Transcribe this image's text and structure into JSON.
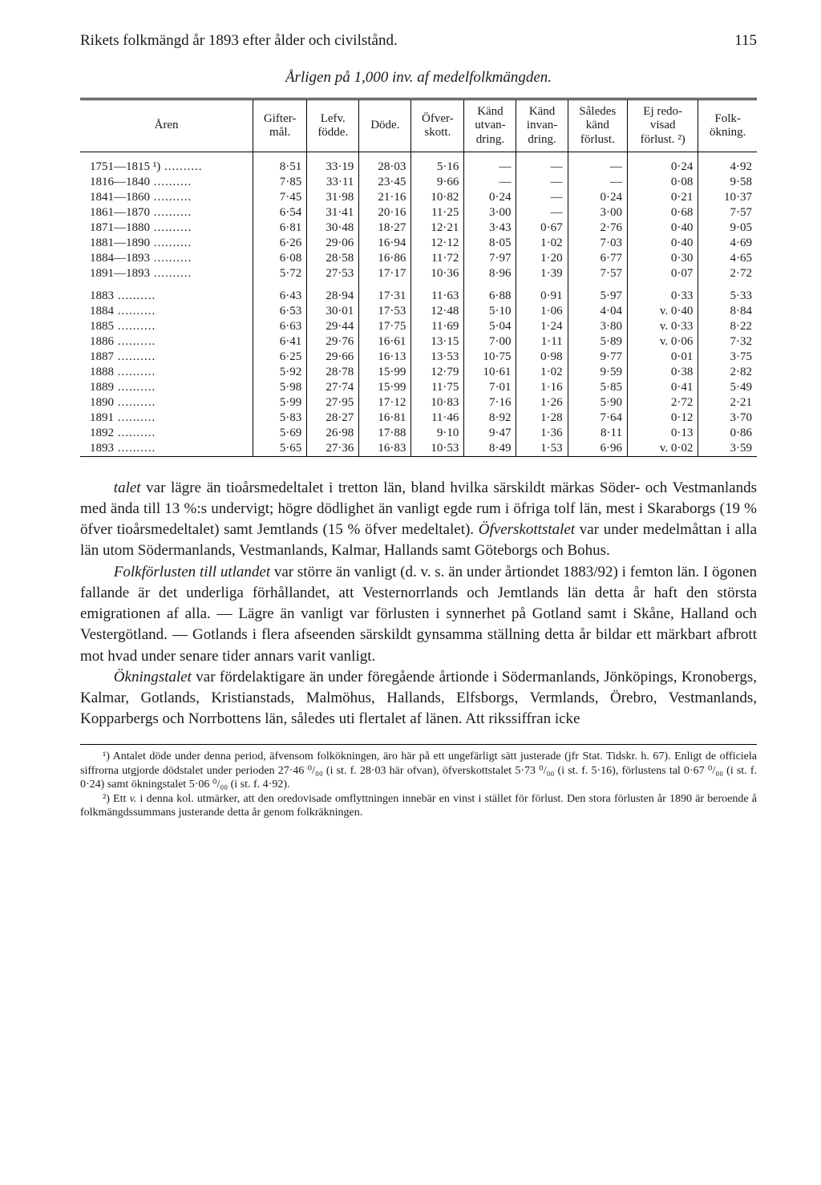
{
  "header": {
    "title": "Rikets folkmängd år 1893 efter ålder och civilstånd.",
    "pageno": "115"
  },
  "subtitle": "Årligen på 1,000 inv. af medelfolkmängden.",
  "table": {
    "columns": [
      "Åren",
      "Gifter-\nmål.",
      "Lefv.\nfödde.",
      "Döde.",
      "Öfver-\nskott.",
      "Känd\nutvan-\ndring.",
      "Känd\ninvan-\ndring.",
      "Således\nkänd\nförlust.",
      "Ej redo-\nvisad\nförlust. ²)",
      "Folk-\nökning."
    ],
    "rows_group1": [
      [
        "1751—1815 ¹)",
        "8·51",
        "33·19",
        "28·03",
        "5·16",
        "—",
        "—",
        "—",
        "0·24",
        "4·92"
      ],
      [
        "1816—1840",
        "7·85",
        "33·11",
        "23·45",
        "9·66",
        "—",
        "—",
        "—",
        "0·08",
        "9·58"
      ],
      [
        "1841—1860",
        "7·45",
        "31·98",
        "21·16",
        "10·82",
        "0·24",
        "—",
        "0·24",
        "0·21",
        "10·37"
      ],
      [
        "1861—1870",
        "6·54",
        "31·41",
        "20·16",
        "11·25",
        "3·00",
        "—",
        "3·00",
        "0·68",
        "7·57"
      ],
      [
        "1871—1880",
        "6·81",
        "30·48",
        "18·27",
        "12·21",
        "3·43",
        "0·67",
        "2·76",
        "0·40",
        "9·05"
      ],
      [
        "1881—1890",
        "6·26",
        "29·06",
        "16·94",
        "12·12",
        "8·05",
        "1·02",
        "7·03",
        "0·40",
        "4·69"
      ],
      [
        "1884—1893",
        "6·08",
        "28·58",
        "16·86",
        "11·72",
        "7·97",
        "1·20",
        "6·77",
        "0·30",
        "4·65"
      ],
      [
        "1891—1893",
        "5·72",
        "27·53",
        "17·17",
        "10·36",
        "8·96",
        "1·39",
        "7·57",
        "0·07",
        "2·72"
      ]
    ],
    "rows_group2": [
      [
        "1883",
        "6·43",
        "28·94",
        "17·31",
        "11·63",
        "6·88",
        "0·91",
        "5·97",
        "0·33",
        "5·33"
      ],
      [
        "1884",
        "6·53",
        "30·01",
        "17·53",
        "12·48",
        "5·10",
        "1·06",
        "4·04",
        "v. 0·40",
        "8·84"
      ],
      [
        "1885",
        "6·63",
        "29·44",
        "17·75",
        "11·69",
        "5·04",
        "1·24",
        "3·80",
        "v. 0·33",
        "8·22"
      ],
      [
        "1886",
        "6·41",
        "29·76",
        "16·61",
        "13·15",
        "7·00",
        "1·11",
        "5·89",
        "v. 0·06",
        "7·32"
      ],
      [
        "1887",
        "6·25",
        "29·66",
        "16·13",
        "13·53",
        "10·75",
        "0·98",
        "9·77",
        "0·01",
        "3·75"
      ],
      [
        "1888",
        "5·92",
        "28·78",
        "15·99",
        "12·79",
        "10·61",
        "1·02",
        "9·59",
        "0·38",
        "2·82"
      ],
      [
        "1889",
        "5·98",
        "27·74",
        "15·99",
        "11·75",
        "7·01",
        "1·16",
        "5·85",
        "0·41",
        "5·49"
      ],
      [
        "1890",
        "5·99",
        "27·95",
        "17·12",
        "10·83",
        "7·16",
        "1·26",
        "5·90",
        "2·72",
        "2·21"
      ],
      [
        "1891",
        "5·83",
        "28·27",
        "16·81",
        "11·46",
        "8·92",
        "1·28",
        "7·64",
        "0·12",
        "3·70"
      ],
      [
        "1892",
        "5·69",
        "26·98",
        "17·88",
        "9·10",
        "9·47",
        "1·36",
        "8·11",
        "0·13",
        "0·86"
      ],
      [
        "1893",
        "5·65",
        "27·36",
        "16·83",
        "10·53",
        "8·49",
        "1·53",
        "6·96",
        "v. 0·02",
        "3·59"
      ]
    ]
  },
  "paragraphs": {
    "p1_a": "talet",
    "p1_b": " var lägre än tioårsmedeltalet i tretton län, bland hvilka särskildt märkas Söder- och Vestmanlands med ända till 13 %:s undervigt; högre dödlighet än vanligt egde rum i öfriga tolf län, mest i Skaraborgs (19 % öfver tioårsmedeltalet) samt Jemtlands (15 % öfver medeltalet). ",
    "p1_c": "Öfver­skottstalet",
    "p1_d": " var under medelmåttan i alla län utom Södermanlands, Vest­manlands, Kalmar, Hallands samt Göteborgs och Bohus.",
    "p2_a": "Folkförlusten till utlandet",
    "p2_b": " var större än vanligt (d. v. s. än under årtiondet 1883/92) i femton län. I ögonen fallande är det underliga förhållandet, att Vesternorrlands och Jemtlands län detta år haft den största emigrationen af alla. — Lägre än vanligt var förlusten i synnerhet på Gotland samt i Skåne, Halland och Vestergötland. — Gotlands i flera afseenden särskildt gynsamma ställning detta år bildar ett märkbart af­brott mot hvad under senare tider annars varit vanligt.",
    "p3_a": "Ökningstalet",
    "p3_b": " var fördelaktigare än under föregående årtionde i Söder­manlands, Jönköpings, Kronobergs, Kalmar, Gotlands, Kristianstads, Malmö­hus, Hallands, Elfsborgs, Vermlands, Örebro, Vestmanlands, Kopparbergs och Norrbottens län, således uti flertalet af länen. Att rikssiffran icke"
  },
  "footnotes": {
    "f1": "¹) Antalet döde under denna period, äfvensom folkökningen, äro här på ett ungefärligt sätt justerade (jfr Stat. Tidskr. h. 67). Enligt de officiela siffrorna utgjorde dödstalet under perioden 27·46 ⁰/₀₀ (i st. f. 28·03 här ofvan), öfverskottstalet 5·73 ⁰/₀₀ (i st. f. 5·16), förlustens tal 0·67 ⁰/₀₀ (i st. f. 0·24) samt ökningstalet 5·06 ⁰/₀₀ (i st. f. 4·92).",
    "f2_a": "²) Ett ",
    "f2_b": "v.",
    "f2_c": " i denna kol. utmärker, att den oredovisade omflyttningen innebär en vinst i stället för förlust. Den stora förlusten år 1890 är beroende å folkmängdssummans justerande detta år genom folkräkningen."
  }
}
